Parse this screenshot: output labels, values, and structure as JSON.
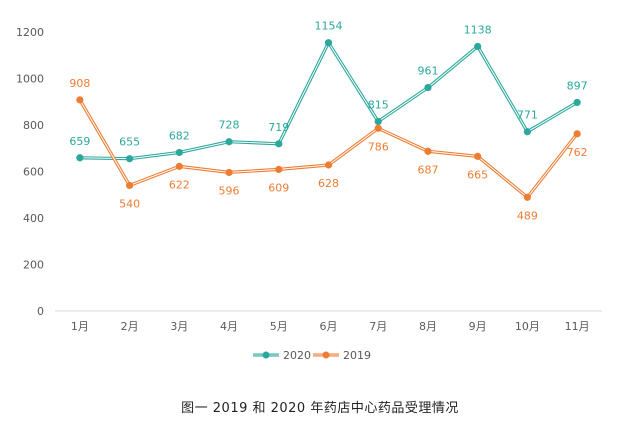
{
  "caption": "图一 2019 和 2020 年药店中心药品受理情况",
  "colors": {
    "s2020": "#2ba89c",
    "s2019": "#ee7d34",
    "axis": "#d9d9d9",
    "tick": "#595959"
  },
  "chart_data": {
    "type": "line",
    "title": "",
    "xlabel": "",
    "ylabel": "",
    "categories": [
      "1月",
      "2月",
      "3月",
      "4月",
      "5月",
      "6月",
      "7月",
      "8月",
      "9月",
      "10月",
      "11月"
    ],
    "ylim": [
      0,
      1200
    ],
    "yticks": [
      0,
      200,
      400,
      600,
      800,
      1000,
      1200
    ],
    "grid": false,
    "legend": "bottom",
    "series": [
      {
        "name": "2020",
        "values": [
          659,
          655,
          682,
          728,
          719,
          1154,
          815,
          961,
          1138,
          771,
          897
        ]
      },
      {
        "name": "2019",
        "values": [
          908,
          540,
          622,
          596,
          609,
          628,
          786,
          687,
          665,
          489,
          762
        ]
      }
    ]
  }
}
